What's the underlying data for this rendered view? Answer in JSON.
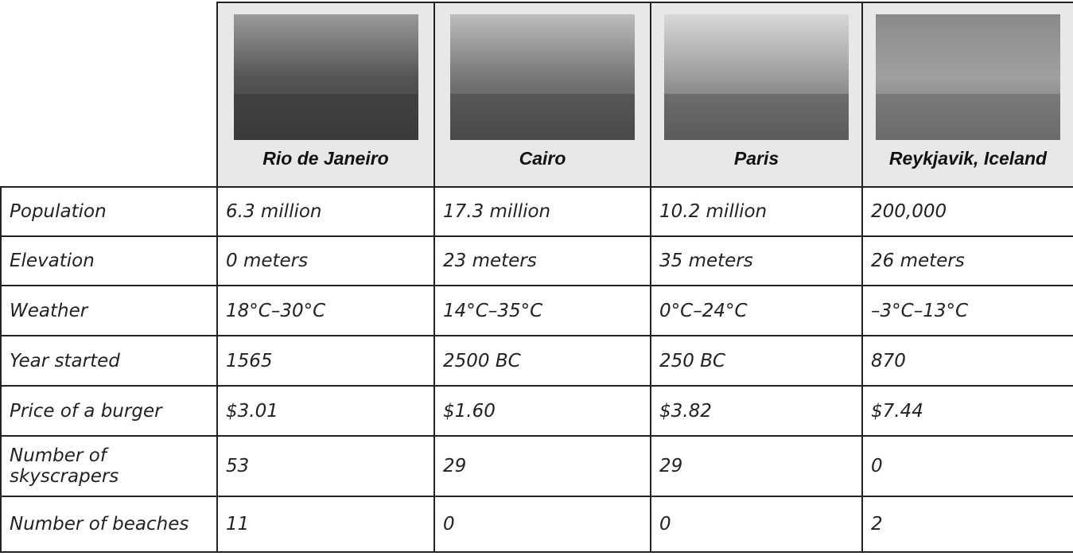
{
  "table": {
    "header": [
      "Rio de Janeiro",
      "Cairo",
      "Paris",
      "Reykjavik, Iceland"
    ],
    "rows": [
      [
        "Population",
        "6.3 million",
        "17.3 million",
        "10.2 million",
        "200,000"
      ],
      [
        "Elevation",
        "0 meters",
        "23 meters",
        "35 meters",
        "26 meters"
      ],
      [
        "Weather",
        "18°C–30°C",
        "14°C–35°C",
        "0°C–24°C",
        "–3°C–13°C"
      ],
      [
        "Year started",
        "1565",
        "2500 BC",
        "250 BC",
        "870"
      ],
      [
        "Price of a burger",
        "$3.01",
        "$1.60",
        "$3.82",
        "$7.44"
      ],
      [
        "Number of skyscrapers",
        "53",
        "29",
        "29",
        "0"
      ],
      [
        "Number of beaches",
        "11",
        "0",
        "0",
        "2"
      ]
    ]
  }
}
